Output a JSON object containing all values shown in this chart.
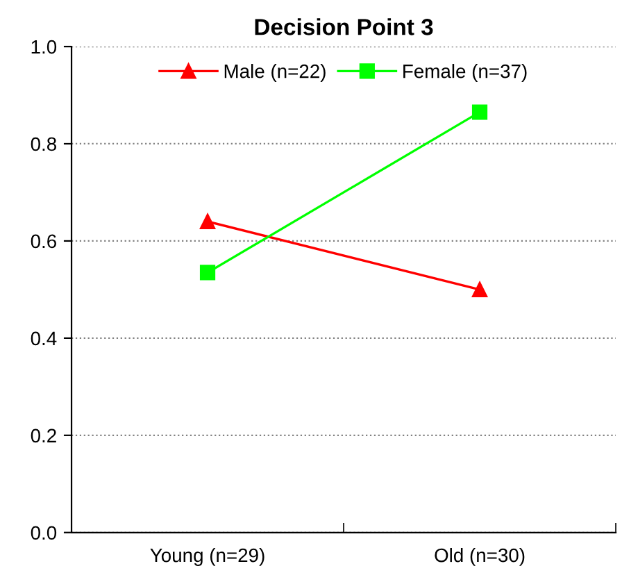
{
  "chart_data": {
    "type": "line",
    "title": "Decision Point 3",
    "categories": [
      "Young (n=29)",
      "Old (n=30)"
    ],
    "series": [
      {
        "name": "Male (n=22)",
        "color": "#ff0000",
        "marker": "triangle",
        "values": [
          0.64,
          0.5
        ]
      },
      {
        "name": "Female (n=37)",
        "color": "#00ff00",
        "marker": "square",
        "values": [
          0.535,
          0.865
        ]
      }
    ],
    "ylim": [
      0,
      1
    ],
    "yticks": [
      {
        "value": 0,
        "label": "0.0"
      },
      0.2,
      0.4,
      0.6,
      0.8,
      {
        "value": 1,
        "label": "1.0"
      }
    ],
    "grid": "y",
    "legend": "top",
    "line_style": "solid"
  }
}
